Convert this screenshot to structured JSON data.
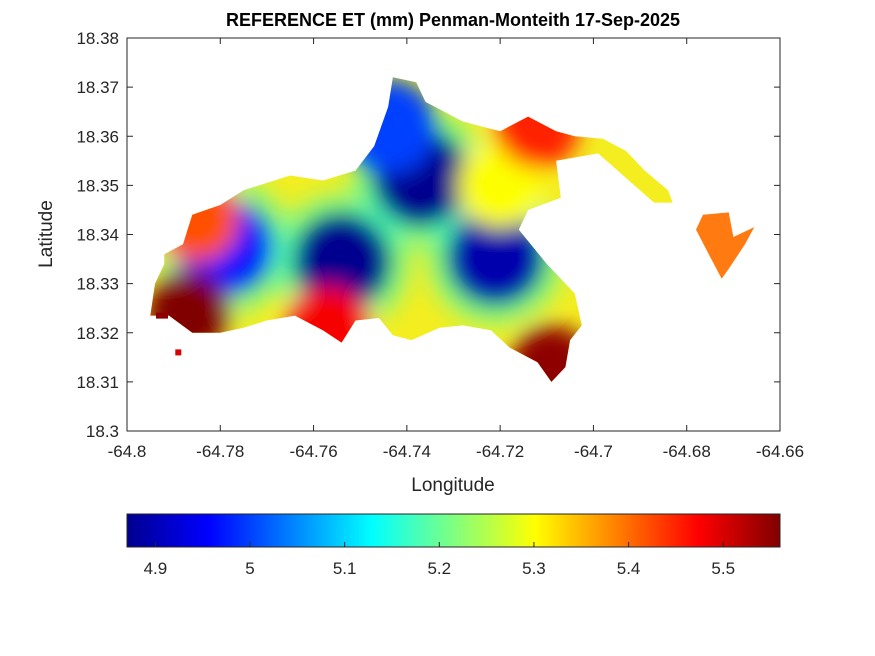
{
  "chart_data": {
    "type": "heatmap",
    "title": "REFERENCE ET (mm) Penman-Monteith 17-Sep-2025",
    "xlabel": "Longitude",
    "ylabel": "Latitude",
    "xlim": [
      -64.8,
      -64.66
    ],
    "ylim": [
      18.3,
      18.38
    ],
    "xticks": [
      -64.8,
      -64.78,
      -64.76,
      -64.74,
      -64.72,
      -64.7,
      -64.68,
      -64.66
    ],
    "yticks": [
      18.3,
      18.31,
      18.32,
      18.33,
      18.34,
      18.35,
      18.36,
      18.37,
      18.38
    ],
    "xtick_labels": [
      "-64.8",
      "-64.78",
      "-64.76",
      "-64.74",
      "-64.72",
      "-64.7",
      "-64.68",
      "-64.66"
    ],
    "ytick_labels": [
      "18.3",
      "18.31",
      "18.32",
      "18.33",
      "18.34",
      "18.35",
      "18.36",
      "18.37",
      "18.38"
    ],
    "colormap": "jet",
    "colorbar": {
      "location": "below",
      "range": [
        4.87,
        5.56
      ],
      "ticks": [
        4.9,
        5.0,
        5.1,
        5.2,
        5.3,
        5.4,
        5.5
      ],
      "tick_labels": [
        "4.9",
        "5",
        "5.1",
        "5.2",
        "5.3",
        "5.4",
        "5.5"
      ]
    },
    "grid": false,
    "value_centers": [
      {
        "lon": -64.737,
        "lat": 18.3515,
        "value": 4.88
      },
      {
        "lon": -64.754,
        "lat": 18.3345,
        "value": 4.88
      },
      {
        "lon": -64.721,
        "lat": 18.3355,
        "value": 4.9
      },
      {
        "lon": -64.779,
        "lat": 18.3375,
        "value": 4.97
      },
      {
        "lon": -64.744,
        "lat": 18.362,
        "value": 5.0
      },
      {
        "lon": -64.72,
        "lat": 18.35,
        "value": 5.3
      },
      {
        "lon": -64.787,
        "lat": 18.324,
        "value": 5.56
      },
      {
        "lon": -64.709,
        "lat": 18.313,
        "value": 5.55
      },
      {
        "lon": -64.712,
        "lat": 18.362,
        "value": 5.45
      },
      {
        "lon": -64.67,
        "lat": 18.338,
        "value": 5.45
      },
      {
        "lon": -64.757,
        "lat": 18.321,
        "value": 5.48
      },
      {
        "lon": -64.785,
        "lat": 18.343,
        "value": 5.42
      }
    ],
    "land_outline": [
      [
        -64.792,
        18.336
      ],
      [
        -64.788,
        18.338
      ],
      [
        -64.786,
        18.344
      ],
      [
        -64.78,
        18.346
      ],
      [
        -64.775,
        18.349
      ],
      [
        -64.765,
        18.352
      ],
      [
        -64.758,
        18.351
      ],
      [
        -64.751,
        18.353
      ],
      [
        -64.747,
        18.358
      ],
      [
        -64.744,
        18.366
      ],
      [
        -64.743,
        18.372
      ],
      [
        -64.738,
        18.371
      ],
      [
        -64.736,
        18.367
      ],
      [
        -64.728,
        18.363
      ],
      [
        -64.72,
        18.361
      ],
      [
        -64.714,
        18.364
      ],
      [
        -64.708,
        18.361
      ],
      [
        -64.704,
        18.36
      ],
      [
        -64.698,
        18.3595
      ],
      [
        -64.693,
        18.357
      ],
      [
        -64.689,
        18.353
      ],
      [
        -64.684,
        18.349
      ],
      [
        -64.683,
        18.3465
      ],
      [
        -64.687,
        18.3465
      ],
      [
        -64.699,
        18.3565
      ],
      [
        -64.708,
        18.355
      ],
      [
        -64.707,
        18.3475
      ],
      [
        -64.714,
        18.345
      ],
      [
        -64.716,
        18.341
      ],
      [
        -64.71,
        18.334
      ],
      [
        -64.704,
        18.328
      ],
      [
        -64.7025,
        18.3215
      ],
      [
        -64.705,
        18.3185
      ],
      [
        -64.706,
        18.313
      ],
      [
        -64.709,
        18.31
      ],
      [
        -64.712,
        18.314
      ],
      [
        -64.718,
        18.317
      ],
      [
        -64.722,
        18.3205
      ],
      [
        -64.728,
        18.3215
      ],
      [
        -64.733,
        18.321
      ],
      [
        -64.739,
        18.3185
      ],
      [
        -64.743,
        18.3195
      ],
      [
        -64.746,
        18.323
      ],
      [
        -64.751,
        18.3225
      ],
      [
        -64.754,
        18.318
      ],
      [
        -64.758,
        18.3205
      ],
      [
        -64.764,
        18.3235
      ],
      [
        -64.77,
        18.3225
      ],
      [
        -64.775,
        18.321
      ],
      [
        -64.78,
        18.32
      ],
      [
        -64.786,
        18.32
      ],
      [
        -64.791,
        18.3235
      ],
      [
        -64.795,
        18.3235
      ],
      [
        -64.794,
        18.33
      ],
      [
        -64.792,
        18.334
      ]
    ],
    "east_fragment_outline": [
      [
        -64.6765,
        18.344
      ],
      [
        -64.671,
        18.3445
      ],
      [
        -64.67,
        18.3395
      ],
      [
        -64.6655,
        18.3415
      ],
      [
        -64.6675,
        18.338
      ],
      [
        -64.671,
        18.333
      ],
      [
        -64.6725,
        18.331
      ],
      [
        -64.675,
        18.3355
      ],
      [
        -64.678,
        18.341
      ]
    ]
  }
}
